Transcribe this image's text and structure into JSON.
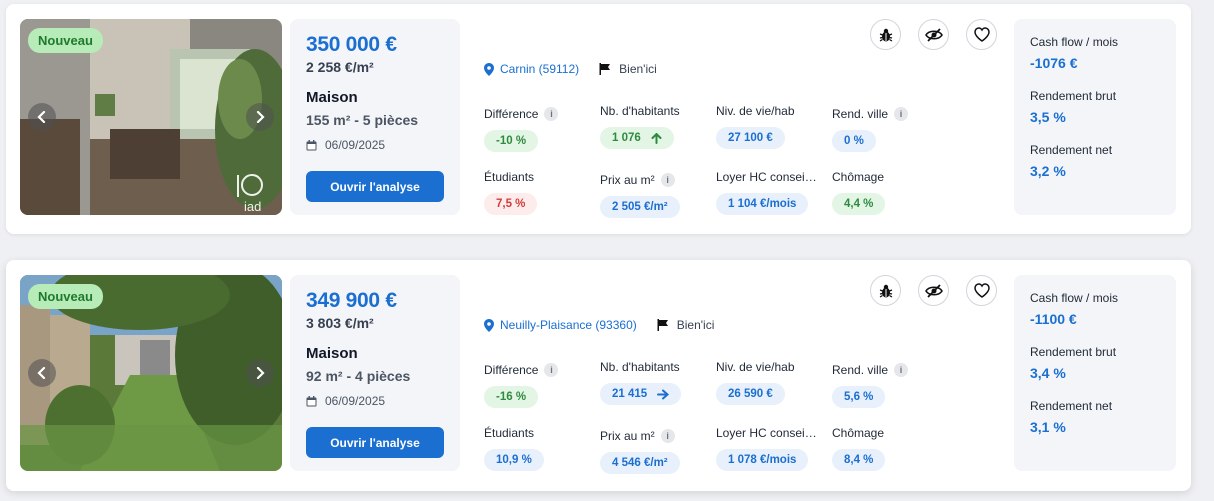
{
  "listings": [
    {
      "badge": "Nouveau",
      "price": "350 000 €",
      "price_per_m2": "2 258 €/m²",
      "type": "Maison",
      "size": "155 m² - 5 pièces",
      "date": "06/09/2025",
      "open_button": "Ouvrir l'analyse",
      "city": "Carnin (59112)",
      "source": "Bien'ici",
      "metrics": {
        "difference": {
          "label": "Différence",
          "value": "-10 %"
        },
        "habitants": {
          "label": "Nb. d'habitants",
          "value": "1 076"
        },
        "niveau_vie": {
          "label": "Niv. de vie/hab",
          "value": "27 100 €"
        },
        "rend_ville": {
          "label": "Rend. ville",
          "value": "0 %"
        },
        "etudiants": {
          "label": "Étudiants",
          "value": "7,5 %"
        },
        "prix_m2": {
          "label": "Prix au m²",
          "value": "2 505 €/m²"
        },
        "loyer": {
          "label": "Loyer HC consei…",
          "value": "1 104 €/mois"
        },
        "chomage": {
          "label": "Chômage",
          "value": "4,4 %"
        }
      },
      "summary": {
        "cashflow_label": "Cash flow / mois",
        "cashflow": "-1076 €",
        "brut_label": "Rendement brut",
        "brut": "3,5 %",
        "net_label": "Rendement net",
        "net": "3,2 %"
      }
    },
    {
      "badge": "Nouveau",
      "price": "349 900 €",
      "price_per_m2": "3 803 €/m²",
      "type": "Maison",
      "size": "92 m² - 4 pièces",
      "date": "06/09/2025",
      "open_button": "Ouvrir l'analyse",
      "city": "Neuilly-Plaisance (93360)",
      "source": "Bien'ici",
      "metrics": {
        "difference": {
          "label": "Différence",
          "value": "-16 %"
        },
        "habitants": {
          "label": "Nb. d'habitants",
          "value": "21 415"
        },
        "niveau_vie": {
          "label": "Niv. de vie/hab",
          "value": "26 590 €"
        },
        "rend_ville": {
          "label": "Rend. ville",
          "value": "5,6 %"
        },
        "etudiants": {
          "label": "Étudiants",
          "value": "10,9 %"
        },
        "prix_m2": {
          "label": "Prix au m²",
          "value": "4 546 €/m²"
        },
        "loyer": {
          "label": "Loyer HC consei…",
          "value": "1 078 €/mois"
        },
        "chomage": {
          "label": "Chômage",
          "value": "8,4 %"
        }
      },
      "summary": {
        "cashflow_label": "Cash flow / mois",
        "cashflow": "-1100 €",
        "brut_label": "Rendement brut",
        "brut": "3,4 %",
        "net_label": "Rendement net",
        "net": "3,1 %"
      }
    }
  ],
  "info_glyph": "i",
  "photo_watermark": "iad",
  "icons": [
    "bug-icon",
    "eye-off-icon",
    "heart-icon",
    "location-pin-icon",
    "flag-icon",
    "calendar-icon",
    "arrow-up-icon",
    "arrow-right-icon",
    "chevron-left-icon",
    "chevron-right-icon"
  ],
  "colors": {
    "accent": "#1a6fd1",
    "green": "#2e8b3d",
    "red": "#d23b3b",
    "badge": "#b7ebb8"
  }
}
